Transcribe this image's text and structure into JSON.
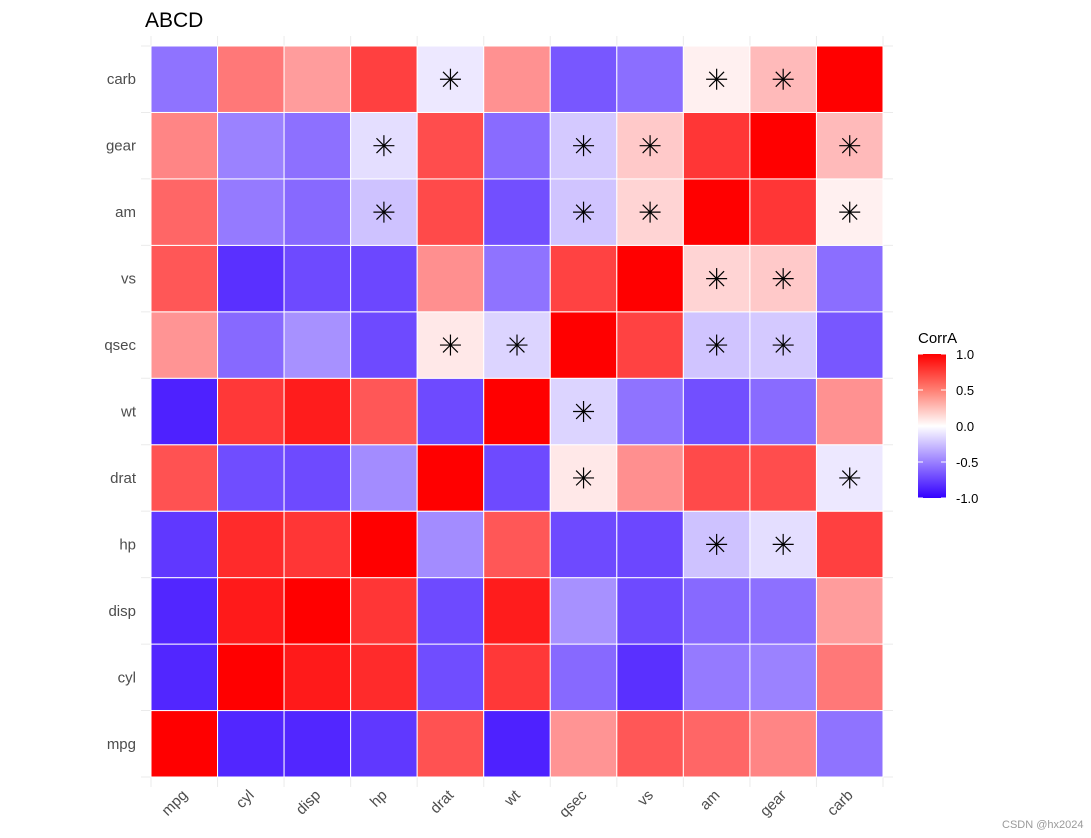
{
  "chart_data": {
    "type": "heatmap",
    "title": "ABCD",
    "variables": [
      "mpg",
      "cyl",
      "disp",
      "hp",
      "drat",
      "wt",
      "qsec",
      "vs",
      "am",
      "gear",
      "carb"
    ],
    "x_categories": [
      "mpg",
      "cyl",
      "disp",
      "hp",
      "drat",
      "wt",
      "qsec",
      "vs",
      "am",
      "gear",
      "carb"
    ],
    "y_categories": [
      "mpg",
      "cyl",
      "disp",
      "hp",
      "drat",
      "wt",
      "qsec",
      "vs",
      "am",
      "gear",
      "carb"
    ],
    "matrix": [
      [
        1.0,
        -0.85,
        -0.85,
        -0.78,
        0.68,
        -0.87,
        0.42,
        0.66,
        0.6,
        0.48,
        -0.55
      ],
      [
        -0.85,
        1.0,
        0.9,
        0.83,
        -0.7,
        0.78,
        -0.59,
        -0.81,
        -0.52,
        -0.49,
        0.53
      ],
      [
        -0.85,
        0.9,
        1.0,
        0.79,
        -0.71,
        0.89,
        -0.43,
        -0.71,
        -0.59,
        -0.56,
        0.39
      ],
      [
        -0.78,
        0.83,
        0.79,
        1.0,
        -0.45,
        0.66,
        -0.71,
        -0.72,
        -0.24,
        -0.13,
        0.75
      ],
      [
        0.68,
        -0.7,
        -0.71,
        -0.45,
        1.0,
        -0.71,
        0.09,
        0.44,
        0.71,
        0.7,
        -0.09
      ],
      [
        -0.87,
        0.78,
        0.89,
        0.66,
        -0.71,
        1.0,
        -0.17,
        -0.55,
        -0.69,
        -0.58,
        0.43
      ],
      [
        0.42,
        -0.59,
        -0.43,
        -0.71,
        0.09,
        -0.17,
        1.0,
        0.74,
        -0.23,
        -0.21,
        -0.66
      ],
      [
        0.66,
        -0.81,
        -0.71,
        -0.72,
        0.44,
        -0.55,
        0.74,
        1.0,
        0.17,
        0.21,
        -0.57
      ],
      [
        0.6,
        -0.52,
        -0.59,
        -0.24,
        0.71,
        -0.69,
        -0.23,
        0.17,
        1.0,
        0.79,
        0.06
      ],
      [
        0.48,
        -0.49,
        -0.56,
        -0.13,
        0.7,
        -0.58,
        -0.21,
        0.21,
        0.79,
        1.0,
        0.27
      ],
      [
        -0.55,
        0.53,
        0.39,
        0.75,
        -0.09,
        0.43,
        -0.66,
        -0.57,
        0.06,
        0.27,
        1.0
      ]
    ],
    "significance_marks": [
      {
        "x": "drat",
        "y": "carb"
      },
      {
        "x": "am",
        "y": "carb"
      },
      {
        "x": "gear",
        "y": "carb"
      },
      {
        "x": "hp",
        "y": "gear"
      },
      {
        "x": "qsec",
        "y": "gear"
      },
      {
        "x": "vs",
        "y": "gear"
      },
      {
        "x": "carb",
        "y": "gear"
      },
      {
        "x": "hp",
        "y": "am"
      },
      {
        "x": "qsec",
        "y": "am"
      },
      {
        "x": "vs",
        "y": "am"
      },
      {
        "x": "carb",
        "y": "am"
      },
      {
        "x": "am",
        "y": "vs"
      },
      {
        "x": "gear",
        "y": "vs"
      },
      {
        "x": "drat",
        "y": "qsec"
      },
      {
        "x": "wt",
        "y": "qsec"
      },
      {
        "x": "am",
        "y": "qsec"
      },
      {
        "x": "gear",
        "y": "qsec"
      },
      {
        "x": "qsec",
        "y": "wt"
      },
      {
        "x": "qsec",
        "y": "drat"
      },
      {
        "x": "carb",
        "y": "drat"
      },
      {
        "x": "am",
        "y": "hp"
      },
      {
        "x": "gear",
        "y": "hp"
      }
    ],
    "legend": {
      "title": "CorrA",
      "ticks": [
        1.0,
        0.5,
        0.0,
        -0.5,
        -1.0
      ],
      "tick_labels": [
        "1.0",
        "0.5",
        "0.0",
        "-0.5",
        "-1.0"
      ],
      "colors": {
        "high": "#ff0000",
        "mid": "#ffffff",
        "low": "#3300ff"
      },
      "placement": "right"
    },
    "value_range": [
      -1,
      1
    ],
    "grid": true
  },
  "watermark": "CSDN @hx2024"
}
